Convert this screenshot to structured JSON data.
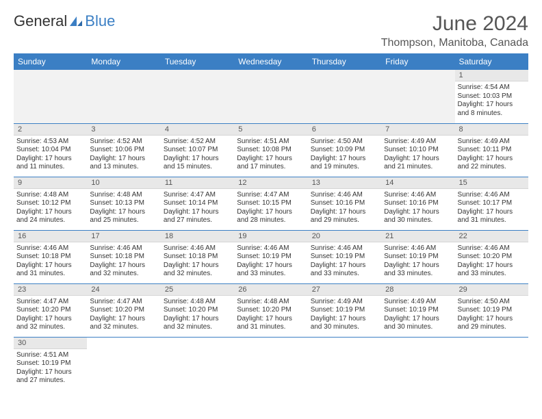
{
  "logo": {
    "text1": "General",
    "text2": "Blue"
  },
  "title": "June 2024",
  "location": "Thompson, Manitoba, Canada",
  "weekdays": [
    "Sunday",
    "Monday",
    "Tuesday",
    "Wednesday",
    "Thursday",
    "Friday",
    "Saturday"
  ],
  "colors": {
    "header_bg": "#3b7fc4",
    "header_text": "#ffffff",
    "daynum_bg": "#e8e8e8",
    "empty_bg": "#f2f2f2",
    "border": "#3b7fc4"
  },
  "weeks": [
    [
      null,
      null,
      null,
      null,
      null,
      null,
      {
        "n": "1",
        "sunrise": "4:54 AM",
        "sunset": "10:03 PM",
        "daylight": "17 hours and 8 minutes."
      }
    ],
    [
      {
        "n": "2",
        "sunrise": "4:53 AM",
        "sunset": "10:04 PM",
        "daylight": "17 hours and 11 minutes."
      },
      {
        "n": "3",
        "sunrise": "4:52 AM",
        "sunset": "10:06 PM",
        "daylight": "17 hours and 13 minutes."
      },
      {
        "n": "4",
        "sunrise": "4:52 AM",
        "sunset": "10:07 PM",
        "daylight": "17 hours and 15 minutes."
      },
      {
        "n": "5",
        "sunrise": "4:51 AM",
        "sunset": "10:08 PM",
        "daylight": "17 hours and 17 minutes."
      },
      {
        "n": "6",
        "sunrise": "4:50 AM",
        "sunset": "10:09 PM",
        "daylight": "17 hours and 19 minutes."
      },
      {
        "n": "7",
        "sunrise": "4:49 AM",
        "sunset": "10:10 PM",
        "daylight": "17 hours and 21 minutes."
      },
      {
        "n": "8",
        "sunrise": "4:49 AM",
        "sunset": "10:11 PM",
        "daylight": "17 hours and 22 minutes."
      }
    ],
    [
      {
        "n": "9",
        "sunrise": "4:48 AM",
        "sunset": "10:12 PM",
        "daylight": "17 hours and 24 minutes."
      },
      {
        "n": "10",
        "sunrise": "4:48 AM",
        "sunset": "10:13 PM",
        "daylight": "17 hours and 25 minutes."
      },
      {
        "n": "11",
        "sunrise": "4:47 AM",
        "sunset": "10:14 PM",
        "daylight": "17 hours and 27 minutes."
      },
      {
        "n": "12",
        "sunrise": "4:47 AM",
        "sunset": "10:15 PM",
        "daylight": "17 hours and 28 minutes."
      },
      {
        "n": "13",
        "sunrise": "4:46 AM",
        "sunset": "10:16 PM",
        "daylight": "17 hours and 29 minutes."
      },
      {
        "n": "14",
        "sunrise": "4:46 AM",
        "sunset": "10:16 PM",
        "daylight": "17 hours and 30 minutes."
      },
      {
        "n": "15",
        "sunrise": "4:46 AM",
        "sunset": "10:17 PM",
        "daylight": "17 hours and 31 minutes."
      }
    ],
    [
      {
        "n": "16",
        "sunrise": "4:46 AM",
        "sunset": "10:18 PM",
        "daylight": "17 hours and 31 minutes."
      },
      {
        "n": "17",
        "sunrise": "4:46 AM",
        "sunset": "10:18 PM",
        "daylight": "17 hours and 32 minutes."
      },
      {
        "n": "18",
        "sunrise": "4:46 AM",
        "sunset": "10:18 PM",
        "daylight": "17 hours and 32 minutes."
      },
      {
        "n": "19",
        "sunrise": "4:46 AM",
        "sunset": "10:19 PM",
        "daylight": "17 hours and 33 minutes."
      },
      {
        "n": "20",
        "sunrise": "4:46 AM",
        "sunset": "10:19 PM",
        "daylight": "17 hours and 33 minutes."
      },
      {
        "n": "21",
        "sunrise": "4:46 AM",
        "sunset": "10:19 PM",
        "daylight": "17 hours and 33 minutes."
      },
      {
        "n": "22",
        "sunrise": "4:46 AM",
        "sunset": "10:20 PM",
        "daylight": "17 hours and 33 minutes."
      }
    ],
    [
      {
        "n": "23",
        "sunrise": "4:47 AM",
        "sunset": "10:20 PM",
        "daylight": "17 hours and 32 minutes."
      },
      {
        "n": "24",
        "sunrise": "4:47 AM",
        "sunset": "10:20 PM",
        "daylight": "17 hours and 32 minutes."
      },
      {
        "n": "25",
        "sunrise": "4:48 AM",
        "sunset": "10:20 PM",
        "daylight": "17 hours and 32 minutes."
      },
      {
        "n": "26",
        "sunrise": "4:48 AM",
        "sunset": "10:20 PM",
        "daylight": "17 hours and 31 minutes."
      },
      {
        "n": "27",
        "sunrise": "4:49 AM",
        "sunset": "10:19 PM",
        "daylight": "17 hours and 30 minutes."
      },
      {
        "n": "28",
        "sunrise": "4:49 AM",
        "sunset": "10:19 PM",
        "daylight": "17 hours and 30 minutes."
      },
      {
        "n": "29",
        "sunrise": "4:50 AM",
        "sunset": "10:19 PM",
        "daylight": "17 hours and 29 minutes."
      }
    ],
    [
      {
        "n": "30",
        "sunrise": "4:51 AM",
        "sunset": "10:19 PM",
        "daylight": "17 hours and 27 minutes."
      },
      null,
      null,
      null,
      null,
      null,
      null
    ]
  ],
  "labels": {
    "sunrise": "Sunrise:",
    "sunset": "Sunset:",
    "daylight": "Daylight:"
  }
}
